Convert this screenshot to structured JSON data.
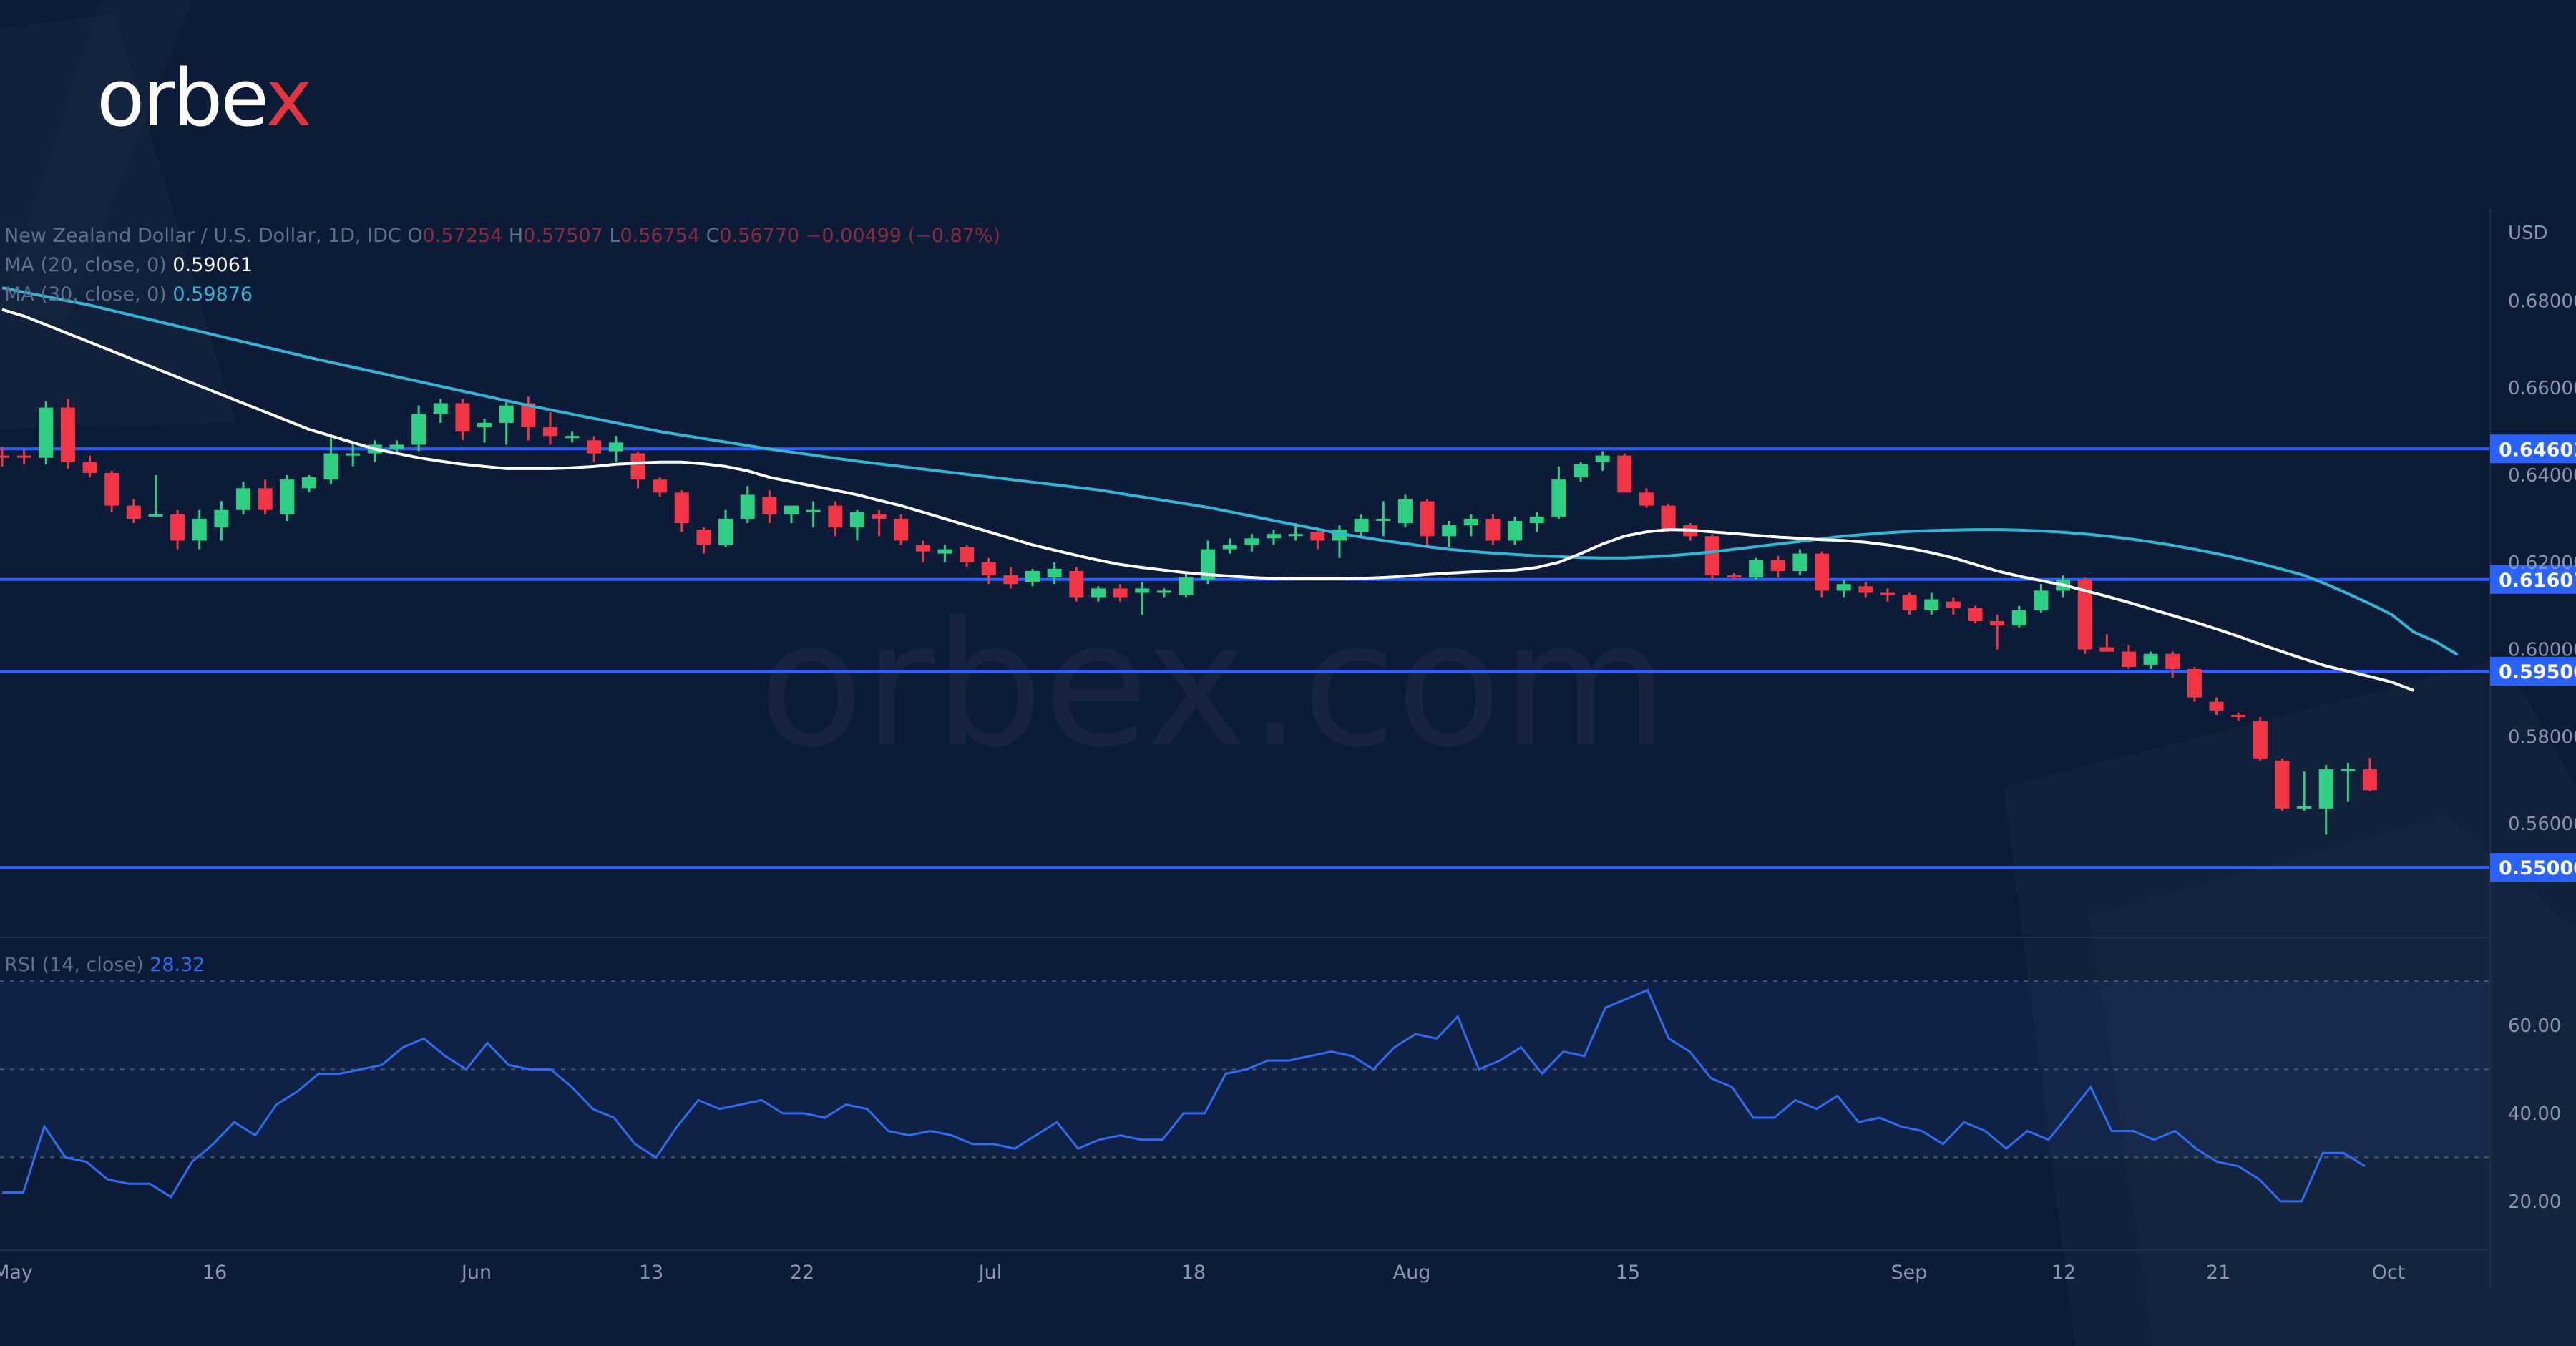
{
  "brand": {
    "logo_prefix": "orbe",
    "logo_suffix": "x",
    "watermark": "orbex.com"
  },
  "header": {
    "symbol": "New Zealand Dollar / U.S. Dollar, 1D, IDC",
    "ohlc": [
      {
        "key": "O",
        "value": "0.57254"
      },
      {
        "key": "H",
        "value": "0.57507"
      },
      {
        "key": "L",
        "value": "0.56754"
      },
      {
        "key": "C",
        "value": "0.56770"
      }
    ],
    "change": "−0.00499 (−0.87%)",
    "ma20_label": "MA (20, close, 0)",
    "ma20_value": "0.59061",
    "ma30_label": "MA (30, close, 0)",
    "ma30_value": "0.59876",
    "rsi_label": "RSI (14, close)",
    "rsi_value": "28.32"
  },
  "colors": {
    "background": "#0c1b37",
    "bull": "#2fcf83",
    "bear": "#f23645",
    "ma20": "#ffffff",
    "ma30": "#33b6d6",
    "level_line": "#2962ff",
    "rsi_line": "#2f6df0"
  },
  "chart_data": [
    {
      "type": "candlestick",
      "currency": "USD",
      "ylim": [
        0.551,
        0.685
      ],
      "y_ticks": [
        "0.68000",
        "0.66000",
        "0.64000",
        "0.62000",
        "0.60000",
        "0.58000",
        "0.56000"
      ],
      "x_ticks": [
        "May",
        "16",
        "Jun",
        "13",
        "22",
        "Jul",
        "18",
        "Aug",
        "15",
        "Sep",
        "12",
        "21",
        "Oct"
      ],
      "levels": [
        "0.64603",
        "0.61607",
        "0.59500",
        "0.55000"
      ],
      "candles": [
        {
          "o": 0.6445,
          "h": 0.6465,
          "l": 0.642,
          "c": 0.644
        },
        {
          "o": 0.6445,
          "h": 0.6458,
          "l": 0.6425,
          "c": 0.644
        },
        {
          "o": 0.644,
          "h": 0.657,
          "l": 0.6425,
          "c": 0.6555
        },
        {
          "o": 0.6555,
          "h": 0.6575,
          "l": 0.6415,
          "c": 0.643
        },
        {
          "o": 0.643,
          "h": 0.6445,
          "l": 0.6395,
          "c": 0.6405
        },
        {
          "o": 0.6405,
          "h": 0.641,
          "l": 0.6315,
          "c": 0.633
        },
        {
          "o": 0.633,
          "h": 0.6345,
          "l": 0.629,
          "c": 0.63
        },
        {
          "o": 0.631,
          "h": 0.64,
          "l": 0.6305,
          "c": 0.631
        },
        {
          "o": 0.631,
          "h": 0.632,
          "l": 0.623,
          "c": 0.625
        },
        {
          "o": 0.625,
          "h": 0.632,
          "l": 0.623,
          "c": 0.63
        },
        {
          "o": 0.628,
          "h": 0.634,
          "l": 0.625,
          "c": 0.632
        },
        {
          "o": 0.632,
          "h": 0.6385,
          "l": 0.631,
          "c": 0.637
        },
        {
          "o": 0.637,
          "h": 0.639,
          "l": 0.631,
          "c": 0.632
        },
        {
          "o": 0.631,
          "h": 0.64,
          "l": 0.6295,
          "c": 0.639
        },
        {
          "o": 0.637,
          "h": 0.64,
          "l": 0.636,
          "c": 0.6395
        },
        {
          "o": 0.639,
          "h": 0.649,
          "l": 0.638,
          "c": 0.645
        },
        {
          "o": 0.6445,
          "h": 0.6475,
          "l": 0.642,
          "c": 0.645
        },
        {
          "o": 0.645,
          "h": 0.648,
          "l": 0.643,
          "c": 0.647
        },
        {
          "o": 0.646,
          "h": 0.648,
          "l": 0.645,
          "c": 0.647
        },
        {
          "o": 0.647,
          "h": 0.656,
          "l": 0.6455,
          "c": 0.654
        },
        {
          "o": 0.654,
          "h": 0.6575,
          "l": 0.652,
          "c": 0.6565
        },
        {
          "o": 0.6565,
          "h": 0.6575,
          "l": 0.648,
          "c": 0.65
        },
        {
          "o": 0.651,
          "h": 0.653,
          "l": 0.6475,
          "c": 0.652
        },
        {
          "o": 0.652,
          "h": 0.657,
          "l": 0.647,
          "c": 0.656
        },
        {
          "o": 0.6565,
          "h": 0.658,
          "l": 0.648,
          "c": 0.651
        },
        {
          "o": 0.651,
          "h": 0.6545,
          "l": 0.647,
          "c": 0.649
        },
        {
          "o": 0.649,
          "h": 0.65,
          "l": 0.6475,
          "c": 0.649
        },
        {
          "o": 0.648,
          "h": 0.649,
          "l": 0.643,
          "c": 0.645
        },
        {
          "o": 0.6455,
          "h": 0.649,
          "l": 0.643,
          "c": 0.6475
        },
        {
          "o": 0.645,
          "h": 0.6455,
          "l": 0.637,
          "c": 0.639
        },
        {
          "o": 0.639,
          "h": 0.6395,
          "l": 0.635,
          "c": 0.636
        },
        {
          "o": 0.636,
          "h": 0.6365,
          "l": 0.627,
          "c": 0.629
        },
        {
          "o": 0.6275,
          "h": 0.628,
          "l": 0.622,
          "c": 0.624
        },
        {
          "o": 0.624,
          "h": 0.632,
          "l": 0.6235,
          "c": 0.63
        },
        {
          "o": 0.63,
          "h": 0.6375,
          "l": 0.629,
          "c": 0.6355
        },
        {
          "o": 0.635,
          "h": 0.6365,
          "l": 0.629,
          "c": 0.631
        },
        {
          "o": 0.631,
          "h": 0.633,
          "l": 0.629,
          "c": 0.633
        },
        {
          "o": 0.632,
          "h": 0.634,
          "l": 0.628,
          "c": 0.632
        },
        {
          "o": 0.633,
          "h": 0.634,
          "l": 0.626,
          "c": 0.628
        },
        {
          "o": 0.628,
          "h": 0.632,
          "l": 0.625,
          "c": 0.6315
        },
        {
          "o": 0.631,
          "h": 0.632,
          "l": 0.626,
          "c": 0.63
        },
        {
          "o": 0.63,
          "h": 0.631,
          "l": 0.624,
          "c": 0.625
        },
        {
          "o": 0.624,
          "h": 0.625,
          "l": 0.62,
          "c": 0.6225
        },
        {
          "o": 0.622,
          "h": 0.624,
          "l": 0.62,
          "c": 0.623
        },
        {
          "o": 0.6235,
          "h": 0.624,
          "l": 0.619,
          "c": 0.62
        },
        {
          "o": 0.62,
          "h": 0.621,
          "l": 0.615,
          "c": 0.617
        },
        {
          "o": 0.617,
          "h": 0.619,
          "l": 0.614,
          "c": 0.615
        },
        {
          "o": 0.6155,
          "h": 0.6185,
          "l": 0.6145,
          "c": 0.618
        },
        {
          "o": 0.6165,
          "h": 0.62,
          "l": 0.615,
          "c": 0.6185
        },
        {
          "o": 0.618,
          "h": 0.619,
          "l": 0.611,
          "c": 0.612
        },
        {
          "o": 0.612,
          "h": 0.6145,
          "l": 0.611,
          "c": 0.614
        },
        {
          "o": 0.614,
          "h": 0.615,
          "l": 0.611,
          "c": 0.612
        },
        {
          "o": 0.613,
          "h": 0.6155,
          "l": 0.608,
          "c": 0.614
        },
        {
          "o": 0.613,
          "h": 0.614,
          "l": 0.612,
          "c": 0.6135
        },
        {
          "o": 0.6125,
          "h": 0.6175,
          "l": 0.612,
          "c": 0.6165
        },
        {
          "o": 0.616,
          "h": 0.625,
          "l": 0.615,
          "c": 0.623
        },
        {
          "o": 0.623,
          "h": 0.6255,
          "l": 0.622,
          "c": 0.624
        },
        {
          "o": 0.624,
          "h": 0.6265,
          "l": 0.6225,
          "c": 0.6255
        },
        {
          "o": 0.6255,
          "h": 0.6275,
          "l": 0.624,
          "c": 0.6265
        },
        {
          "o": 0.6265,
          "h": 0.629,
          "l": 0.625,
          "c": 0.6265
        },
        {
          "o": 0.627,
          "h": 0.628,
          "l": 0.623,
          "c": 0.625
        },
        {
          "o": 0.625,
          "h": 0.6285,
          "l": 0.621,
          "c": 0.6275
        },
        {
          "o": 0.627,
          "h": 0.631,
          "l": 0.626,
          "c": 0.63
        },
        {
          "o": 0.63,
          "h": 0.634,
          "l": 0.626,
          "c": 0.63
        },
        {
          "o": 0.629,
          "h": 0.6355,
          "l": 0.628,
          "c": 0.6345
        },
        {
          "o": 0.634,
          "h": 0.6345,
          "l": 0.624,
          "c": 0.626
        },
        {
          "o": 0.626,
          "h": 0.6295,
          "l": 0.6235,
          "c": 0.6285
        },
        {
          "o": 0.6285,
          "h": 0.631,
          "l": 0.626,
          "c": 0.63
        },
        {
          "o": 0.63,
          "h": 0.631,
          "l": 0.624,
          "c": 0.625
        },
        {
          "o": 0.625,
          "h": 0.6305,
          "l": 0.624,
          "c": 0.6295
        },
        {
          "o": 0.629,
          "h": 0.6315,
          "l": 0.627,
          "c": 0.6305
        },
        {
          "o": 0.6305,
          "h": 0.642,
          "l": 0.63,
          "c": 0.639
        },
        {
          "o": 0.6395,
          "h": 0.643,
          "l": 0.6385,
          "c": 0.6425
        },
        {
          "o": 0.643,
          "h": 0.6455,
          "l": 0.641,
          "c": 0.6445
        },
        {
          "o": 0.6445,
          "h": 0.645,
          "l": 0.636,
          "c": 0.636
        },
        {
          "o": 0.636,
          "h": 0.637,
          "l": 0.6325,
          "c": 0.633
        },
        {
          "o": 0.633,
          "h": 0.6335,
          "l": 0.627,
          "c": 0.6275
        },
        {
          "o": 0.6285,
          "h": 0.629,
          "l": 0.625,
          "c": 0.626
        },
        {
          "o": 0.626,
          "h": 0.6265,
          "l": 0.616,
          "c": 0.617
        },
        {
          "o": 0.617,
          "h": 0.6175,
          "l": 0.616,
          "c": 0.6165
        },
        {
          "o": 0.6165,
          "h": 0.621,
          "l": 0.616,
          "c": 0.6205
        },
        {
          "o": 0.6205,
          "h": 0.6215,
          "l": 0.6165,
          "c": 0.618
        },
        {
          "o": 0.618,
          "h": 0.623,
          "l": 0.617,
          "c": 0.622
        },
        {
          "o": 0.622,
          "h": 0.6225,
          "l": 0.612,
          "c": 0.6135
        },
        {
          "o": 0.6135,
          "h": 0.616,
          "l": 0.612,
          "c": 0.615
        },
        {
          "o": 0.6145,
          "h": 0.6155,
          "l": 0.612,
          "c": 0.613
        },
        {
          "o": 0.613,
          "h": 0.614,
          "l": 0.611,
          "c": 0.6125
        },
        {
          "o": 0.6125,
          "h": 0.613,
          "l": 0.608,
          "c": 0.609
        },
        {
          "o": 0.609,
          "h": 0.613,
          "l": 0.608,
          "c": 0.6115
        },
        {
          "o": 0.611,
          "h": 0.612,
          "l": 0.608,
          "c": 0.6095
        },
        {
          "o": 0.6095,
          "h": 0.61,
          "l": 0.606,
          "c": 0.6065
        },
        {
          "o": 0.6065,
          "h": 0.608,
          "l": 0.6,
          "c": 0.6055
        },
        {
          "o": 0.6055,
          "h": 0.61,
          "l": 0.605,
          "c": 0.609
        },
        {
          "o": 0.609,
          "h": 0.615,
          "l": 0.6085,
          "c": 0.6135
        },
        {
          "o": 0.6135,
          "h": 0.617,
          "l": 0.612,
          "c": 0.616
        },
        {
          "o": 0.616,
          "h": 0.6165,
          "l": 0.599,
          "c": 0.6
        },
        {
          "o": 0.6005,
          "h": 0.6035,
          "l": 0.5995,
          "c": 0.5995
        },
        {
          "o": 0.5995,
          "h": 0.601,
          "l": 0.5955,
          "c": 0.596
        },
        {
          "o": 0.5965,
          "h": 0.5995,
          "l": 0.5955,
          "c": 0.599
        },
        {
          "o": 0.599,
          "h": 0.5995,
          "l": 0.5935,
          "c": 0.5955
        },
        {
          "o": 0.5955,
          "h": 0.596,
          "l": 0.588,
          "c": 0.589
        },
        {
          "o": 0.588,
          "h": 0.589,
          "l": 0.585,
          "c": 0.586
        },
        {
          "o": 0.585,
          "h": 0.5855,
          "l": 0.5835,
          "c": 0.5845
        },
        {
          "o": 0.5835,
          "h": 0.5845,
          "l": 0.5745,
          "c": 0.575
        },
        {
          "o": 0.5745,
          "h": 0.575,
          "l": 0.563,
          "c": 0.5635
        },
        {
          "o": 0.5635,
          "h": 0.572,
          "l": 0.563,
          "c": 0.564
        },
        {
          "o": 0.5635,
          "h": 0.5735,
          "l": 0.5575,
          "c": 0.5725
        },
        {
          "o": 0.5725,
          "h": 0.574,
          "l": 0.565,
          "c": 0.5725
        },
        {
          "o": 0.5725,
          "h": 0.5751,
          "l": 0.5675,
          "c": 0.5677
        }
      ],
      "ma20": [
        0.678,
        0.6765,
        0.6745,
        0.6725,
        0.6705,
        0.6685,
        0.6665,
        0.6645,
        0.6625,
        0.6605,
        0.6585,
        0.6565,
        0.6545,
        0.6525,
        0.6505,
        0.649,
        0.6475,
        0.646,
        0.645,
        0.644,
        0.6432,
        0.6425,
        0.642,
        0.6415,
        0.6415,
        0.6415,
        0.6417,
        0.642,
        0.6425,
        0.6428,
        0.643,
        0.643,
        0.6426,
        0.642,
        0.641,
        0.6395,
        0.6385,
        0.6375,
        0.6365,
        0.6355,
        0.6342,
        0.633,
        0.6315,
        0.63,
        0.6285,
        0.627,
        0.6255,
        0.624,
        0.6228,
        0.6216,
        0.6205,
        0.6195,
        0.6188,
        0.6182,
        0.6176,
        0.6172,
        0.6168,
        0.6165,
        0.6163,
        0.6162,
        0.6162,
        0.6162,
        0.6163,
        0.6165,
        0.6168,
        0.6172,
        0.6175,
        0.6178,
        0.618,
        0.6182,
        0.6188,
        0.62,
        0.622,
        0.6242,
        0.626,
        0.627,
        0.6275,
        0.6274,
        0.627,
        0.6266,
        0.6262,
        0.6258,
        0.6255,
        0.6252,
        0.625,
        0.6246,
        0.624,
        0.6232,
        0.6222,
        0.621,
        0.6195,
        0.618,
        0.6168,
        0.6158,
        0.6148,
        0.6135,
        0.6122,
        0.6108,
        0.6093,
        0.6078,
        0.6063,
        0.6047,
        0.603,
        0.6012,
        0.5995,
        0.5978,
        0.5962,
        0.595,
        0.5938,
        0.5925,
        0.5906
      ],
      "ma30": [
        0.683,
        0.682,
        0.681,
        0.68,
        0.679,
        0.6778,
        0.6766,
        0.6754,
        0.6742,
        0.673,
        0.6718,
        0.6706,
        0.6694,
        0.6682,
        0.667,
        0.6659,
        0.6648,
        0.6637,
        0.6626,
        0.6615,
        0.6604,
        0.6593,
        0.6582,
        0.6571,
        0.656,
        0.655,
        0.654,
        0.653,
        0.652,
        0.651,
        0.65,
        0.6492,
        0.6484,
        0.6476,
        0.6468,
        0.646,
        0.6453,
        0.6446,
        0.6439,
        0.6432,
        0.6426,
        0.642,
        0.6414,
        0.6408,
        0.6402,
        0.6396,
        0.639,
        0.6384,
        0.6378,
        0.6372,
        0.6366,
        0.6358,
        0.635,
        0.6342,
        0.6334,
        0.6326,
        0.6316,
        0.6306,
        0.6296,
        0.6286,
        0.6276,
        0.6266,
        0.6258,
        0.625,
        0.6243,
        0.6236,
        0.623,
        0.6225,
        0.6221,
        0.6218,
        0.6215,
        0.6213,
        0.6211,
        0.621,
        0.621,
        0.6212,
        0.6215,
        0.6219,
        0.6224,
        0.623,
        0.6236,
        0.6242,
        0.6248,
        0.6254,
        0.626,
        0.6264,
        0.6268,
        0.6271,
        0.6273,
        0.6274,
        0.6275,
        0.6275,
        0.6274,
        0.6272,
        0.6269,
        0.6265,
        0.626,
        0.6254,
        0.6247,
        0.6239,
        0.623,
        0.622,
        0.6209,
        0.6197,
        0.6184,
        0.617,
        0.615,
        0.6128,
        0.6105,
        0.608,
        0.604,
        0.6018,
        0.5988
      ]
    },
    {
      "type": "line",
      "label": "RSI (14, close)",
      "ylim": [
        13,
        72
      ],
      "y_ticks": [
        "60.00",
        "40.00",
        "20.00"
      ],
      "bands": [
        70,
        50,
        30
      ],
      "values": [
        22,
        22,
        37,
        30,
        29,
        25,
        24,
        24,
        21,
        29,
        33,
        38,
        35,
        42,
        45,
        49,
        49,
        50,
        51,
        55,
        57,
        53,
        50,
        56,
        51,
        50,
        50,
        46,
        41,
        39,
        33,
        30,
        37,
        43,
        41,
        42,
        43,
        40,
        40,
        39,
        42,
        41,
        36,
        35,
        36,
        35,
        33,
        33,
        32,
        35,
        38,
        32,
        34,
        35,
        34,
        34,
        40,
        40,
        49,
        50,
        52,
        52,
        53,
        54,
        53,
        50,
        55,
        58,
        57,
        62,
        50,
        52,
        55,
        49,
        54,
        53,
        64,
        66,
        68,
        57,
        54,
        48,
        46,
        39,
        39,
        43,
        41,
        44,
        38,
        39,
        37,
        36,
        33,
        38,
        36,
        32,
        36,
        34,
        40,
        46,
        36,
        36,
        34,
        36,
        32,
        29,
        28,
        25,
        20,
        20,
        31,
        31,
        28
      ]
    }
  ]
}
